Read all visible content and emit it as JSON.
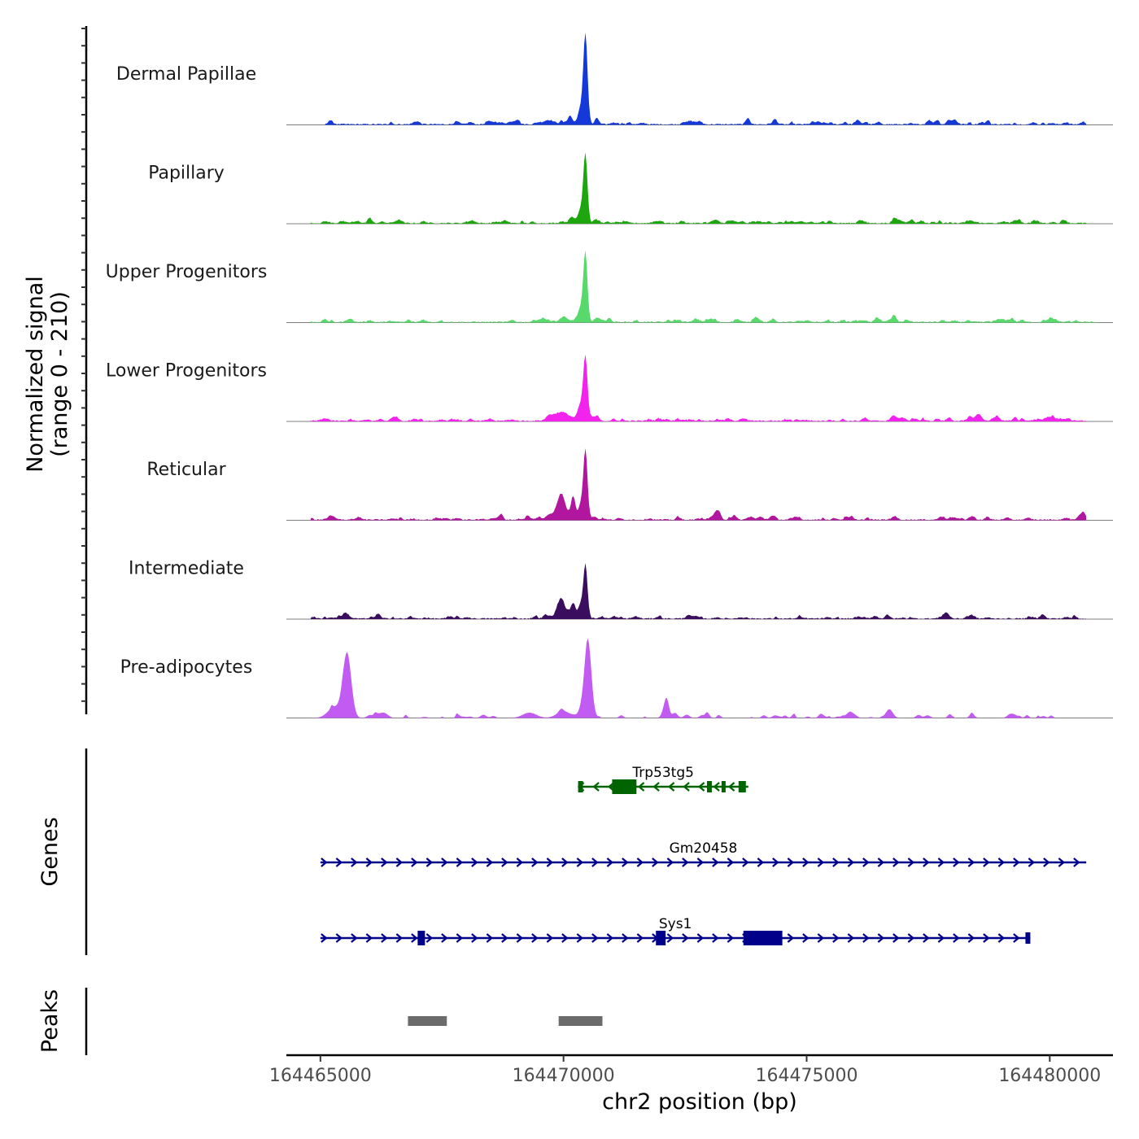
{
  "chart_data": {
    "type": "area",
    "title": "",
    "ylabel_lines": [
      "Normalized signal",
      "(range 0 - 210)"
    ],
    "xlabel": "chr2 position (bp)",
    "x_range": [
      164464300,
      164481300
    ],
    "y_range": [
      0,
      210
    ],
    "xticks": [
      {
        "value": 164465000,
        "label": "164465000"
      },
      {
        "value": 164470000,
        "label": "164470000"
      },
      {
        "value": 164475000,
        "label": "164475000"
      },
      {
        "value": 164480000,
        "label": "164480000"
      }
    ],
    "tracks": [
      {
        "name": "Dermal Papillae",
        "color": "#1539D9",
        "x_start": 164465100,
        "x_end": 164480750,
        "baseline": 3,
        "noise": 5,
        "peaks": [
          [
            164470450,
            200,
            60
          ],
          [
            164470350,
            35,
            80
          ],
          [
            164470150,
            14,
            60
          ],
          [
            164470700,
            10,
            50
          ],
          [
            164469700,
            10,
            150
          ],
          [
            164473800,
            12,
            50
          ]
        ]
      },
      {
        "name": "Papillary",
        "color": "#1DA60E",
        "x_start": 164464800,
        "x_end": 164480750,
        "baseline": 3,
        "noise": 4,
        "peaks": [
          [
            164470450,
            155,
            60
          ],
          [
            164470350,
            30,
            80
          ],
          [
            164470150,
            14,
            60
          ],
          [
            164470650,
            8,
            60
          ],
          [
            164476800,
            10,
            60
          ]
        ]
      },
      {
        "name": "Upper Progenitors",
        "color": "#58D96B",
        "x_start": 164464800,
        "x_end": 164481000,
        "baseline": 3,
        "noise": 4,
        "peaks": [
          [
            164470450,
            155,
            60
          ],
          [
            164470350,
            30,
            80
          ],
          [
            164470000,
            12,
            100
          ],
          [
            164470700,
            10,
            80
          ],
          [
            164476800,
            16,
            60
          ]
        ]
      },
      {
        "name": "Lower Progenitors",
        "color": "#F223ED",
        "x_start": 164464800,
        "x_end": 164480750,
        "baseline": 3,
        "noise": 5,
        "peaks": [
          [
            164470450,
            140,
            60
          ],
          [
            164470350,
            35,
            80
          ],
          [
            164469950,
            20,
            250
          ],
          [
            164470700,
            10,
            60
          ],
          [
            164476800,
            10,
            100
          ]
        ]
      },
      {
        "name": "Reticular",
        "color": "#B0169E",
        "x_start": 164464800,
        "x_end": 164480750,
        "baseline": 3,
        "noise": 5,
        "peaks": [
          [
            164470450,
            160,
            60
          ],
          [
            164470350,
            30,
            60
          ],
          [
            164469950,
            45,
            100
          ],
          [
            164470200,
            40,
            60
          ],
          [
            164470000,
            15,
            300
          ],
          [
            164476800,
            8,
            80
          ],
          [
            164478400,
            8,
            80
          ]
        ]
      },
      {
        "name": "Intermediate",
        "color": "#3A0D5E",
        "x_start": 164464800,
        "x_end": 164480750,
        "baseline": 3,
        "noise": 4,
        "peaks": [
          [
            164470450,
            120,
            60
          ],
          [
            164470350,
            20,
            60
          ],
          [
            164469950,
            35,
            100
          ],
          [
            164470200,
            30,
            60
          ],
          [
            164470000,
            10,
            300
          ],
          [
            164465500,
            8,
            100
          ],
          [
            164478400,
            8,
            80
          ]
        ]
      },
      {
        "name": "Pre-adipocytes",
        "color": "#C15BF2",
        "x_start": 164464800,
        "x_end": 164481000,
        "baseline": 0,
        "noise": 6,
        "peaks": [
          [
            164470500,
            180,
            100
          ],
          [
            164465550,
            140,
            120
          ],
          [
            164465300,
            25,
            200
          ],
          [
            164472100,
            35,
            80
          ],
          [
            164476700,
            20,
            100
          ],
          [
            164466300,
            12,
            120
          ],
          [
            164470000,
            15,
            200
          ],
          [
            164469300,
            12,
            200
          ]
        ]
      }
    ],
    "genes": [
      {
        "name": "Trp53tg5",
        "color": "#006400",
        "strand": "-",
        "start": 164470300,
        "end": 164473800,
        "exons": [
          [
            164470300,
            164470400,
            "small"
          ],
          [
            164471000,
            164471500,
            "big"
          ],
          [
            164472950,
            164473050,
            "small"
          ],
          [
            164473250,
            164473300,
            "small"
          ],
          [
            164473600,
            164473750,
            "small"
          ]
        ]
      },
      {
        "name": "Gm20458",
        "color": "#00008B",
        "strand": "+",
        "start": 164465000,
        "end": 164480750,
        "exons": []
      },
      {
        "name": "Sys1",
        "color": "#00008B",
        "strand": "+",
        "start": 164465000,
        "end": 164479600,
        "exons": [
          [
            164467000,
            164467150,
            "big"
          ],
          [
            164471900,
            164472100,
            "big"
          ],
          [
            164473700,
            164474500,
            "big"
          ],
          [
            164479500,
            164479600,
            "small"
          ]
        ]
      }
    ],
    "peaks": [
      {
        "start": 164466800,
        "end": 164467600,
        "color": "#6B6B6B"
      },
      {
        "start": 164469900,
        "end": 164470800,
        "color": "#6B6B6B"
      }
    ],
    "panel_labels": {
      "genes": "Genes",
      "peaks": "Peaks"
    }
  }
}
